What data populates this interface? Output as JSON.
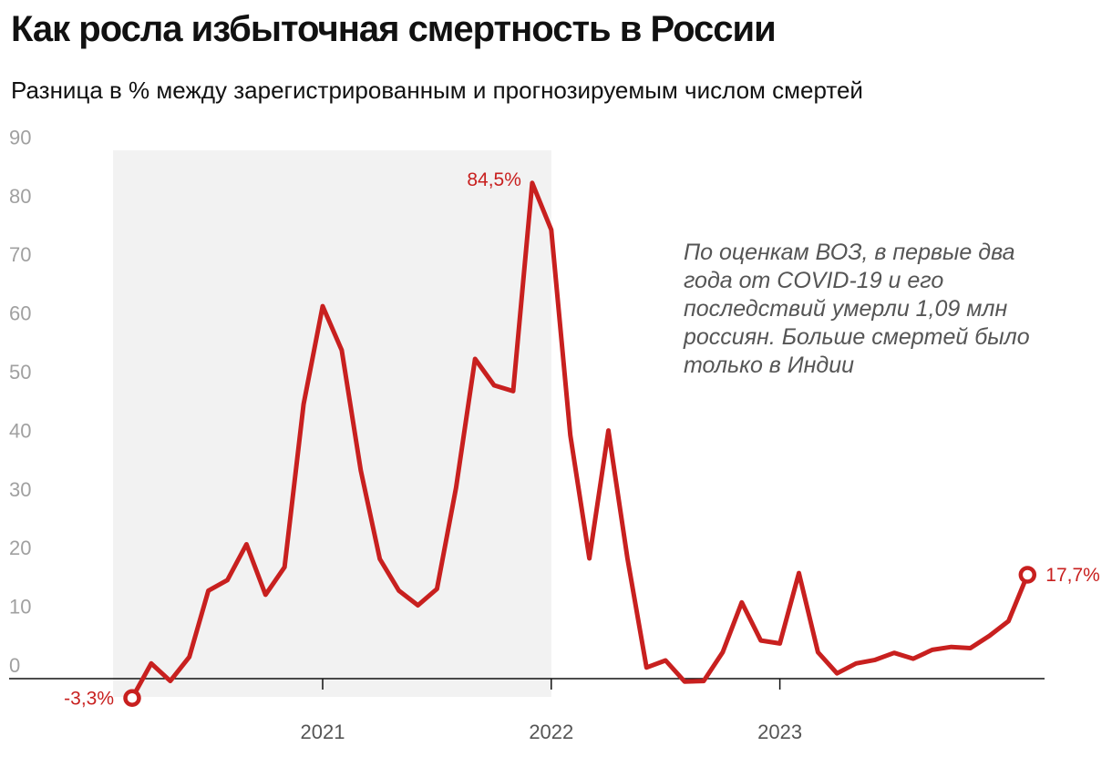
{
  "title": "Как росла избыточная смертность в России",
  "subtitle": "Разница в % между зарегистрированным и прогнозируемым числом смертей",
  "annotation": "По оценкам ВОЗ, в первые два года от COVID-19 и его последствий умерли 1,09 млн россиян. Больше смертей было только в Индии",
  "colors": {
    "line": "#c8201f",
    "shade": "#f2f2f2",
    "axis": "#111111",
    "ytick": "#a0a0a0",
    "xtick": "#555555"
  },
  "chart_data": {
    "type": "line",
    "title": "Как росла избыточная смертность в России",
    "subtitle": "Разница в % между зарегистрированным и прогнозируемым числом смертей",
    "x": [
      "2020-03",
      "2020-04",
      "2020-05",
      "2020-06",
      "2020-07",
      "2020-08",
      "2020-09",
      "2020-10",
      "2020-11",
      "2020-12",
      "2021-01",
      "2021-02",
      "2021-03",
      "2021-04",
      "2021-05",
      "2021-06",
      "2021-07",
      "2021-08",
      "2021-09",
      "2021-10",
      "2021-11",
      "2021-12",
      "2022-01",
      "2022-02",
      "2022-03",
      "2022-04",
      "2022-05",
      "2022-06",
      "2022-07",
      "2022-08",
      "2022-09",
      "2022-10",
      "2022-11",
      "2022-12",
      "2023-01",
      "2023-02",
      "2023-03",
      "2023-04",
      "2023-05",
      "2023-06",
      "2023-07",
      "2023-08",
      "2023-09",
      "2023-10",
      "2023-11",
      "2023-12",
      "2024-01",
      "2024-02"
    ],
    "values": [
      -3.3,
      2.6,
      -0.4,
      3.7,
      15.0,
      16.8,
      22.9,
      14.3,
      19.0,
      46.8,
      63.5,
      56.0,
      35.5,
      20.4,
      15.0,
      12.5,
      15.3,
      32.5,
      54.5,
      50.0,
      49.0,
      84.5,
      76.5,
      41.5,
      20.5,
      42.3,
      20.5,
      1.9,
      3.1,
      -0.5,
      -0.4,
      4.5,
      13.0,
      6.5,
      6.0,
      18.0,
      4.5,
      0.9,
      2.6,
      3.2,
      4.4,
      3.4,
      4.9,
      5.4,
      5.2,
      7.3,
      9.8,
      17.7
    ],
    "ylim": [
      -3.3,
      90
    ],
    "yticks": [
      0,
      10,
      20,
      30,
      40,
      50,
      60,
      70,
      80,
      90
    ],
    "xticks": [
      {
        "label": "2021",
        "x": "2021-01"
      },
      {
        "label": "2022",
        "x": "2022-01"
      },
      {
        "label": "2023",
        "x": "2023-01"
      }
    ],
    "shaded_period": {
      "from": "2020-02",
      "to": "2022-01"
    },
    "point_labels": [
      {
        "x": "2020-03",
        "text": "-3,3%"
      },
      {
        "x": "2021-12",
        "text": "84,5%"
      },
      {
        "x": "2024-02",
        "text": "17,7%"
      }
    ],
    "grid": false,
    "legend": "none"
  }
}
